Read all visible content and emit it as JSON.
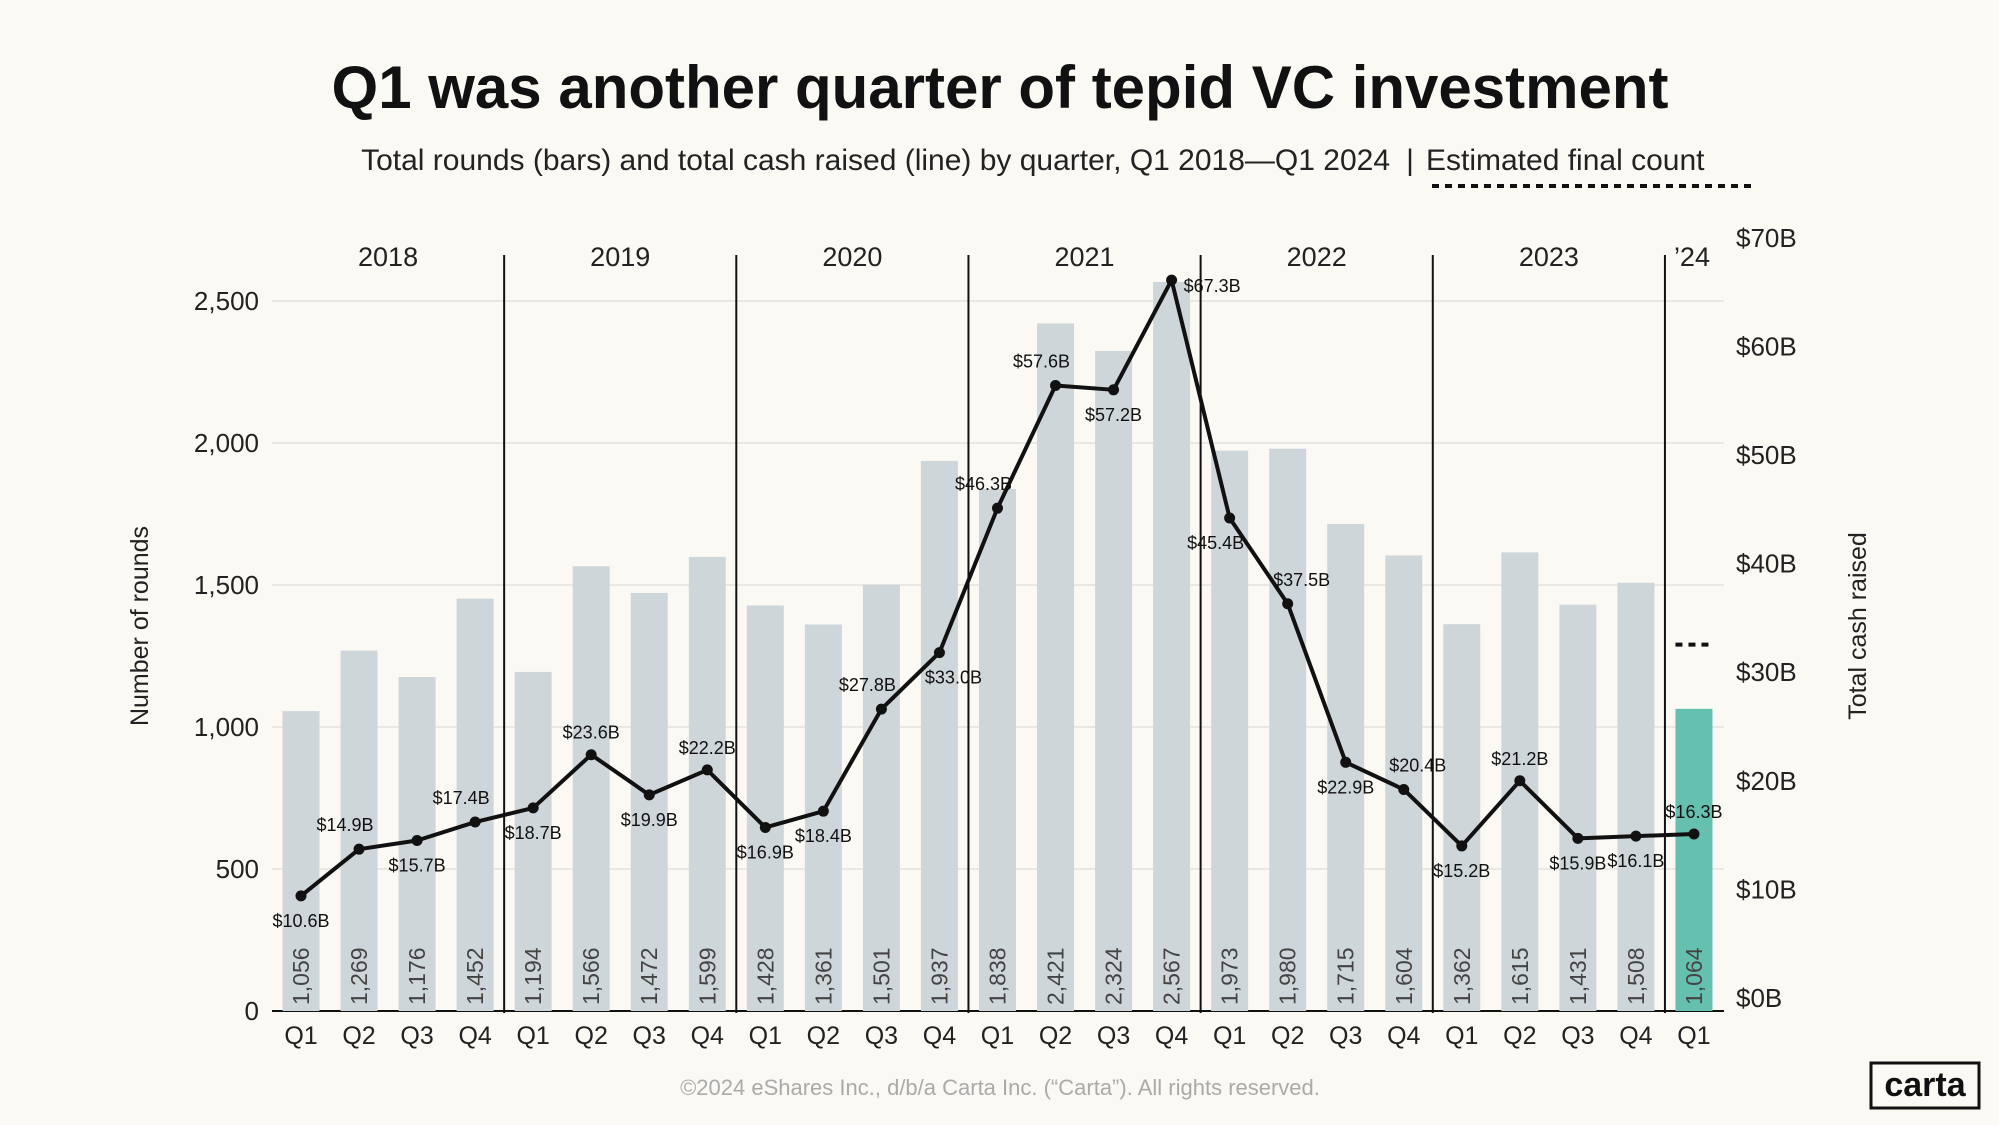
{
  "chart_data": {
    "type": "bar",
    "title": "Q1 was another quarter of tepid VC investment",
    "subtitle": "Total rounds (bars) and total cash raised (line) by quarter, Q1 2018—Q1 2024",
    "subtitle_separator": "|",
    "estimate_legend": "Estimated final count",
    "ylabel_left": "Number of rounds",
    "ylabel_right": "Total cash raised",
    "left_ticks": [
      "0",
      "500",
      "1,000",
      "1,500",
      "2,000",
      "2,500"
    ],
    "left_tick_values": [
      0,
      500,
      1000,
      1500,
      2000,
      2500
    ],
    "right_ticks": [
      "$0B",
      "$10B",
      "$20B",
      "$30B",
      "$40B",
      "$50B",
      "$60B",
      "$70B"
    ],
    "right_tick_values": [
      0,
      10,
      20,
      30,
      40,
      50,
      60,
      70
    ],
    "ylim_left": [
      0,
      2500
    ],
    "ylim_right": [
      0,
      70
    ],
    "grid": true,
    "years": [
      "2018",
      "2019",
      "2020",
      "2021",
      "2022",
      "2023",
      "’24"
    ],
    "categories": [
      "Q1",
      "Q2",
      "Q3",
      "Q4",
      "Q1",
      "Q2",
      "Q3",
      "Q4",
      "Q1",
      "Q2",
      "Q3",
      "Q4",
      "Q1",
      "Q2",
      "Q3",
      "Q4",
      "Q1",
      "Q2",
      "Q3",
      "Q4",
      "Q1",
      "Q2",
      "Q3",
      "Q4",
      "Q1"
    ],
    "series": [
      {
        "type": "bar",
        "axis": "left",
        "values": [
          1056,
          1269,
          1176,
          1452,
          1194,
          1566,
          1472,
          1599,
          1428,
          1361,
          1501,
          1937,
          1838,
          2421,
          2324,
          2567,
          1973,
          1980,
          1715,
          1604,
          1362,
          1615,
          1431,
          1508,
          1064
        ],
        "labels": [
          "1,056",
          "1,269",
          "1,176",
          "1,452",
          "1,194",
          "1,566",
          "1,472",
          "1,599",
          "1,428",
          "1,361",
          "1,501",
          "1,937",
          "1,838",
          "2,421",
          "2,324",
          "2,567",
          "1,973",
          "1,980",
          "1,715",
          "1,604",
          "1,362",
          "1,615",
          "1,431",
          "1,508",
          "1,064"
        ]
      },
      {
        "type": "line",
        "axis": "right",
        "values": [
          10.6,
          14.9,
          15.7,
          17.4,
          18.7,
          23.6,
          19.9,
          22.2,
          16.9,
          18.4,
          27.8,
          33.0,
          46.3,
          57.6,
          57.2,
          67.3,
          45.4,
          37.5,
          22.9,
          20.4,
          15.2,
          21.2,
          15.9,
          16.1,
          16.3
        ],
        "labels": [
          "$10.6B",
          "$14.9B",
          "$15.7B",
          "$17.4B",
          "$18.7B",
          "$23.6B",
          "$19.9B",
          "$22.2B",
          "$16.9B",
          "$18.4B",
          "$27.8B",
          "$33.0B",
          "$46.3B",
          "$57.6B",
          "$57.2B",
          "$67.3B",
          "$45.4B",
          "$37.5B",
          "$22.9B",
          "$20.4B",
          "$15.2B",
          "$21.2B",
          "$15.9B",
          "$16.1B",
          "$16.3B"
        ]
      }
    ],
    "estimated_final_count_latest": 1290,
    "colors": {
      "bar": "#CFD6DA",
      "latest_bar": "#66C0B0",
      "line": "#111111",
      "background": "#FBF9F4",
      "grid": "#E6E3DE"
    }
  },
  "footer": "©2024 eShares Inc., d/b/a Carta Inc. (“Carta”). All rights reserved.",
  "logo": "carta"
}
